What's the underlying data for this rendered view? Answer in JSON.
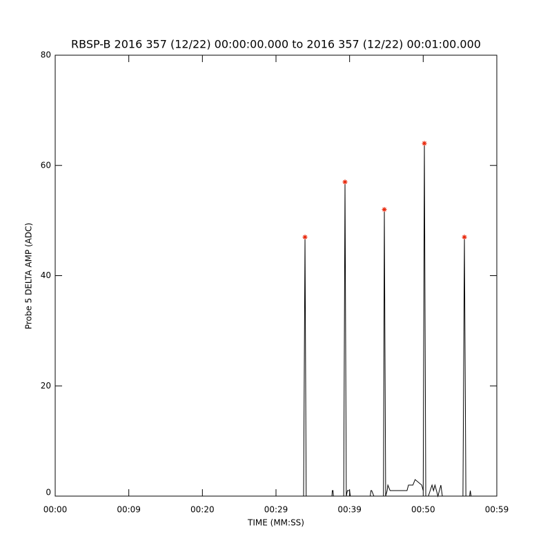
{
  "chart_data": {
    "type": "line",
    "title": "RBSP-B 2016 357 (12/22) 00:00:00.000 to 2016 357 (12/22) 00:01:00.000",
    "xlabel": "TIME (MM:SS)",
    "ylabel": "Probe 5 DELTA AMP (ADC)",
    "xlim": [
      0,
      60
    ],
    "ylim": [
      0,
      80
    ],
    "xticks": [
      {
        "value": 0,
        "label": "00:00"
      },
      {
        "value": 10,
        "label": "00:09"
      },
      {
        "value": 20,
        "label": "00:20"
      },
      {
        "value": 30,
        "label": "00:29"
      },
      {
        "value": 40,
        "label": "00:39"
      },
      {
        "value": 50,
        "label": "00:50"
      },
      {
        "value": 60,
        "label": "00:59"
      }
    ],
    "yticks": [
      0,
      20,
      40,
      60,
      80
    ],
    "series": [
      {
        "color": "#000000",
        "x": [
          0,
          33.75,
          33.94,
          34.1,
          37.6,
          37.65,
          37.75,
          37.8,
          39.2,
          39.375,
          39.55,
          39.7,
          40.0,
          40.1,
          40.7,
          42.8,
          42.9,
          43.0,
          43.3,
          43.4,
          44.6,
          44.72,
          44.9,
          45.1,
          45.2,
          45.5,
          46.2,
          47.8,
          48.0,
          48.6,
          48.9,
          49.8,
          50.0,
          50.16,
          50.35,
          50.7,
          51.2,
          51.4,
          51.6,
          52.0,
          52.4,
          52.6,
          55.4,
          55.6,
          55.8,
          56.3,
          56.4,
          56.5,
          60
        ],
        "values": [
          0,
          0,
          47,
          0,
          0,
          1,
          1,
          0,
          0,
          57,
          0,
          1,
          1,
          0,
          0,
          0,
          1,
          1,
          0,
          0,
          0,
          52,
          0,
          1,
          2,
          1,
          1,
          1,
          2,
          2,
          3,
          2,
          1,
          64,
          0,
          0,
          2,
          1,
          2,
          0,
          2,
          0,
          0,
          47,
          0,
          0,
          1,
          0,
          0
        ]
      },
      {
        "color": "#e8280c",
        "marker": "asterisk",
        "x": [
          33.94,
          39.375,
          44.72,
          50.16,
          55.6
        ],
        "values": [
          47,
          57,
          52,
          64,
          47
        ]
      }
    ]
  }
}
